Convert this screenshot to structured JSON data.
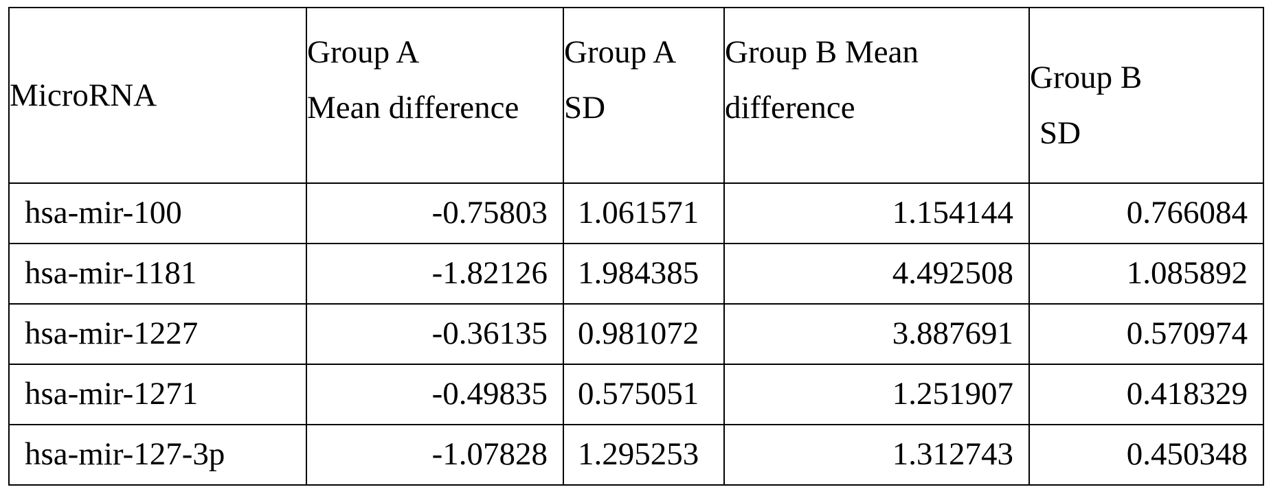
{
  "table": {
    "headers": {
      "microrna": "MicroRNA",
      "group_a_mean_line1": "Group A",
      "group_a_mean_line2": "Mean difference",
      "group_a_sd_line1": "Group A",
      "group_a_sd_line2": "SD",
      "group_b_mean_line1": "Group B Mean",
      "group_b_mean_line2": "difference",
      "group_b_sd_line1": "Group B",
      "group_b_sd_line2": "SD"
    },
    "rows": [
      {
        "microrna": "hsa-mir-100",
        "group_a_mean": "-0.75803",
        "group_a_sd": "1.061571",
        "group_b_mean": "1.154144",
        "group_b_sd": "0.766084"
      },
      {
        "microrna": "hsa-mir-1181",
        "group_a_mean": "-1.82126",
        "group_a_sd": "1.984385",
        "group_b_mean": "4.492508",
        "group_b_sd": "1.085892"
      },
      {
        "microrna": "hsa-mir-1227",
        "group_a_mean": "-0.36135",
        "group_a_sd": "0.981072",
        "group_b_mean": "3.887691",
        "group_b_sd": "0.570974"
      },
      {
        "microrna": "hsa-mir-1271",
        "group_a_mean": "-0.49835",
        "group_a_sd": "0.575051",
        "group_b_mean": "1.251907",
        "group_b_sd": "0.418329"
      },
      {
        "microrna": "hsa-mir-127-3p",
        "group_a_mean": "-1.07828",
        "group_a_sd": "1.295253",
        "group_b_mean": "1.312743",
        "group_b_sd": "0.450348"
      }
    ]
  }
}
